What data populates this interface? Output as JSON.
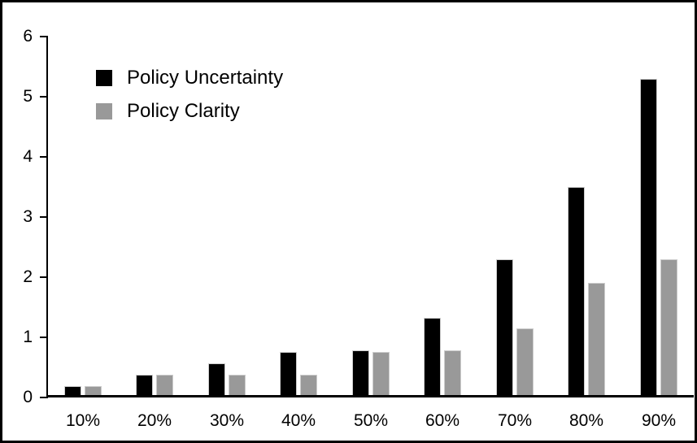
{
  "chart_data": {
    "type": "bar",
    "title": "",
    "xlabel": "",
    "ylabel": "",
    "categories": [
      "10%",
      "20%",
      "30%",
      "40%",
      "50%",
      "60%",
      "70%",
      "80%",
      "90%"
    ],
    "series": [
      {
        "name": "Policy Uncertainty",
        "color": "#000000",
        "values": [
          0.19,
          0.38,
          0.57,
          0.76,
          0.78,
          1.33,
          2.3,
          3.5,
          5.3
        ]
      },
      {
        "name": "Policy Clarity",
        "color": "#999999",
        "values": [
          0.19,
          0.38,
          0.38,
          0.38,
          0.76,
          0.78,
          1.15,
          1.9,
          2.3
        ]
      }
    ],
    "ylim": [
      0,
      6
    ],
    "y_tick_step": 1,
    "y_tick_labels": [
      "0",
      "1",
      "2",
      "3",
      "4",
      "5",
      "6"
    ],
    "grid": "off",
    "legend_position": "top-left-inside",
    "axis_color": "#000000",
    "background_color": "#ffffff"
  }
}
